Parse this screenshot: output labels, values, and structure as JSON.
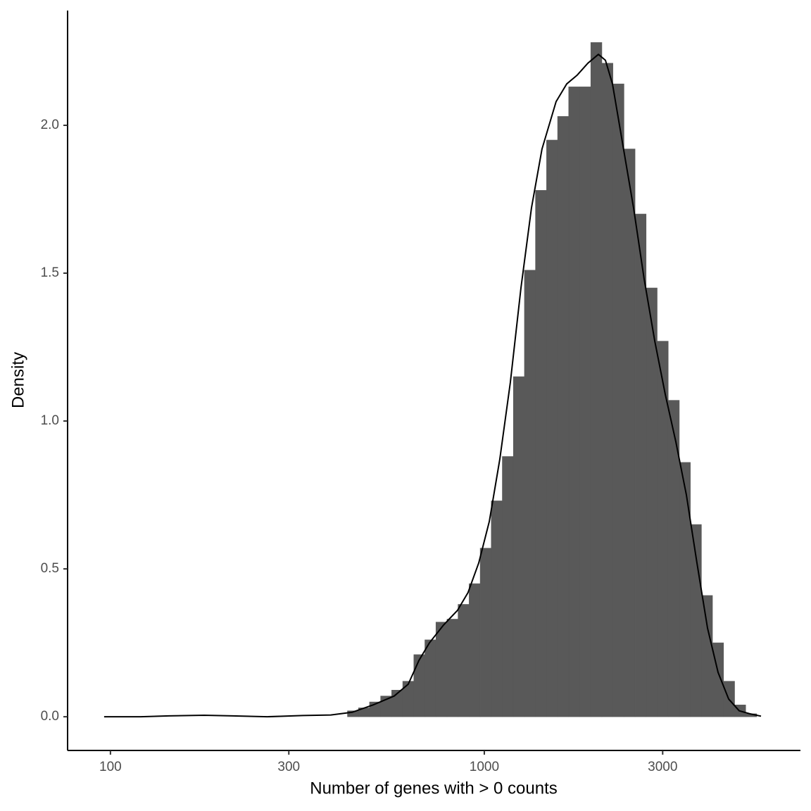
{
  "chart_data": {
    "type": "histogram",
    "xlabel": "Number of genes with > 0 counts",
    "ylabel": "Density",
    "xscale": "log",
    "color": "#595959",
    "bins": [
      96.2,
      102.9,
      110.2,
      118.0,
      126.3,
      135.2,
      144.7,
      154.9,
      165.8,
      177.5,
      190.0,
      203.4,
      217.8,
      233.1,
      249.6,
      267.2,
      286.0,
      306.2,
      327.8,
      350.9,
      375.6,
      402.1,
      430.5,
      460.8,
      493.3,
      528.1,
      565.3,
      605.2,
      647.9,
      693.5,
      742.4,
      794.8,
      850.8,
      910.8,
      975.0,
      1043.8,
      1117.3,
      1196.1,
      1280.4,
      1370.7,
      1467.4,
      1570.8,
      1681.5,
      1800.0,
      1926.9,
      2062.8,
      2208.2,
      2363.8,
      2530.5,
      2708.9,
      2899.9,
      3104.3,
      3323.2,
      3557.5,
      3808.3,
      4076.8,
      4364.2,
      4671.9,
      5001.3,
      5353.9,
      5731.4
    ],
    "values": [
      0,
      0,
      0,
      0,
      0,
      0,
      0,
      0,
      0,
      0,
      0,
      0,
      0,
      0,
      0,
      0,
      0,
      0,
      0,
      0,
      0,
      0,
      0.02,
      0.03,
      0.05,
      0.07,
      0.09,
      0.12,
      0.21,
      0.26,
      0.32,
      0.33,
      0.38,
      0.45,
      0.57,
      0.73,
      0.88,
      1.15,
      1.51,
      1.78,
      1.95,
      2.03,
      2.13,
      2.13,
      2.28,
      2.21,
      2.14,
      1.92,
      1.7,
      1.45,
      1.27,
      1.07,
      0.86,
      0.65,
      0.41,
      0.25,
      0.12,
      0.04,
      0.01,
      0
    ],
    "density": {
      "color": "#000000",
      "x": [
        96.2,
        120.5,
        143.3,
        178.0,
        211.8,
        263.0,
        326.8,
        388.6,
        442.6,
        504.2,
        574.1,
        626.1,
        668.3,
        713.2,
        777.7,
        848.1,
        904.6,
        966.0,
        1031,
        1100,
        1174,
        1253,
        1337,
        1427,
        1556,
        1661,
        1773,
        1892,
        2019,
        2109,
        2202,
        2350,
        2508,
        2677,
        2857,
        3048,
        3253,
        3472,
        3705,
        3954,
        4220,
        4504,
        4806,
        5129,
        5497
      ],
      "values": [
        0.0,
        0.0,
        0.003,
        0.005,
        0.003,
        0.0,
        0.004,
        0.006,
        0.015,
        0.04,
        0.07,
        0.11,
        0.19,
        0.25,
        0.31,
        0.36,
        0.42,
        0.52,
        0.66,
        0.87,
        1.13,
        1.45,
        1.72,
        1.92,
        2.08,
        2.14,
        2.17,
        2.21,
        2.24,
        2.22,
        2.14,
        1.93,
        1.72,
        1.48,
        1.27,
        1.09,
        0.93,
        0.75,
        0.52,
        0.3,
        0.15,
        0.06,
        0.02,
        0.01,
        0.002
      ]
    },
    "xlim": [
      76.8,
      7008
    ],
    "xticks": [
      100,
      300,
      1000,
      3000
    ],
    "ylim": [
      -0.114,
      2.388
    ],
    "yticks": [
      {
        "value": 0,
        "label": "0.0"
      },
      {
        "value": 0.5,
        "label": "0.5"
      },
      {
        "value": 1,
        "label": "1.0"
      },
      {
        "value": 1.5,
        "label": "1.5"
      },
      {
        "value": 2,
        "label": "2.0"
      }
    ]
  }
}
